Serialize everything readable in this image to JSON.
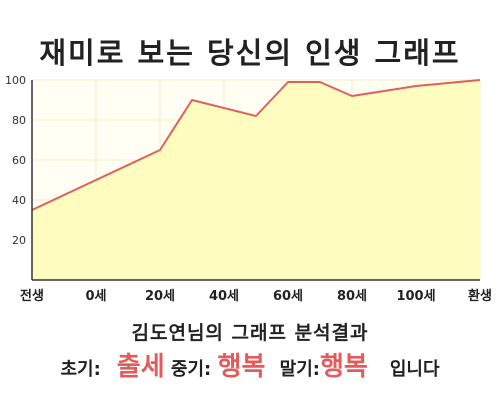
{
  "header": {
    "title": "재미로 보는 당신의 인생 그래프"
  },
  "summary": {
    "text": "김도연님의 그래프 분석결과"
  },
  "result": {
    "early_label": "초기:",
    "early_value": "출세",
    "middle_label": "중기:",
    "middle_value": "행복",
    "late_label": "말기:",
    "late_value": "행복",
    "suffix": "입니다"
  },
  "colors": {
    "line": "#e06060",
    "fill": "#fffcc0",
    "plot_bg": "#fffff4",
    "grid": "#f4eec8",
    "highlight": "#e55a5a"
  },
  "chart_data": {
    "type": "area",
    "x_ticks": [
      {
        "value": 0,
        "label": "전생"
      },
      {
        "value": 1,
        "label": "0세"
      },
      {
        "value": 2,
        "label": "20세"
      },
      {
        "value": 3,
        "label": "40세"
      },
      {
        "value": 4,
        "label": "60세"
      },
      {
        "value": 5,
        "label": "80세"
      },
      {
        "value": 6,
        "label": "100세"
      },
      {
        "value": 7,
        "label": "환생"
      }
    ],
    "y_ticks": [
      20,
      40,
      60,
      80,
      100
    ],
    "ylim": [
      0,
      100
    ],
    "xlim": [
      0,
      7
    ],
    "grid": true,
    "points": [
      {
        "x": 0,
        "y": 35
      },
      {
        "x": 2,
        "y": 65
      },
      {
        "x": 2.5,
        "y": 90
      },
      {
        "x": 3.5,
        "y": 82
      },
      {
        "x": 4,
        "y": 99
      },
      {
        "x": 4.5,
        "y": 99
      },
      {
        "x": 5,
        "y": 92
      },
      {
        "x": 6,
        "y": 97
      },
      {
        "x": 7,
        "y": 100
      }
    ]
  }
}
